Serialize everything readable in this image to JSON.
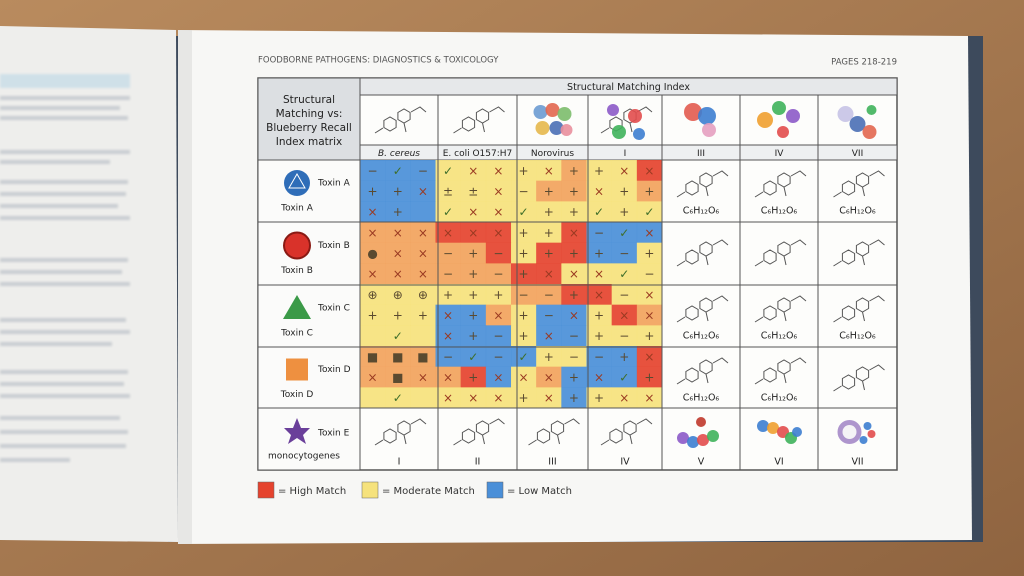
{
  "header": {
    "title": "FOODBORNE PATHOGENS: DIAGNOSTICS & TOXICOLOGY",
    "pages": "PAGES 218-219"
  },
  "table": {
    "corner": [
      "Structural",
      "Matching vs:",
      "Blueberry Recall",
      "Index matrix"
    ],
    "group_header": "Structural Matching Index",
    "columns": [
      "B. cereus",
      "E. coli O157:H7",
      "Norovirus",
      "I",
      "III",
      "IV",
      "VII"
    ],
    "rows": [
      {
        "icon_label": "Toxin A",
        "label": "Toxin A",
        "formulas": [
          "C₆H₁₂O₆",
          "C₆H₁₂O₆",
          "C₆H₁₂O₆"
        ]
      },
      {
        "icon_label": "Toxin B",
        "label": "Toxin B",
        "formulas": [
          null,
          null,
          null
        ]
      },
      {
        "icon_label": "Toxin C",
        "label": "Toxin C",
        "formulas": [
          "C₆H₁₂O₆",
          "C₆H₁₂O₆",
          "C₆H₁₂O₆"
        ]
      },
      {
        "icon_label": "Toxin D",
        "label": "Toxin D",
        "formulas": [
          "C₆H₁₂O₆",
          "C₆H₁₂O₆",
          null
        ]
      },
      {
        "icon_label": "Toxin E",
        "label": "monocytogenes",
        "formulas": [
          null,
          null,
          null
        ]
      }
    ],
    "footer": [
      "I",
      "II",
      "III",
      "IV",
      "V",
      "VI",
      "VII"
    ],
    "heatmap": {
      "palette": {
        "h": "#e5432e",
        "o": "#f2a35c",
        "m": "#f6e27c",
        "l": "#4a8fd8"
      },
      "colors": [
        "lll",
        "mmm",
        "mmo",
        "mmh",
        "lll",
        "mmm",
        "moo",
        "mmo",
        "lll",
        "mmm",
        "mmm",
        "mmm",
        "ooo",
        "hhh",
        "mmh",
        "lll",
        "ooo",
        "ooh",
        "mhh",
        "llm",
        "ooo",
        "ooo",
        "hhm",
        "mmm",
        "mmm",
        "mmm",
        "ooh",
        "hmm",
        "mmm",
        "llo",
        "mll",
        "mho",
        "mmm",
        "lll",
        "mll",
        "mmm",
        "ooo",
        "lll",
        "lmm",
        "llh",
        "ooo",
        "ohl",
        "mol",
        "llh",
        "mmm",
        "mmm",
        "mml",
        "mmm"
      ],
      "symbols": [
        [
          "−",
          "✓",
          "−",
          "✓",
          "×",
          "×",
          "+",
          "×",
          "+",
          "+",
          "×",
          "×"
        ],
        [
          "+",
          "+",
          "×",
          "±",
          "±",
          "×",
          "−",
          "+",
          "+",
          "×",
          "+",
          "+"
        ],
        [
          "×",
          "+",
          null,
          "✓",
          "×",
          "×",
          "✓",
          "+",
          "+",
          "✓",
          "+",
          "✓"
        ],
        [
          "×",
          "×",
          "×",
          "×",
          "×",
          "×",
          "+",
          "+",
          "×",
          "−",
          "✓",
          "×"
        ],
        [
          "●",
          "×",
          "×",
          "−",
          "+",
          "−",
          "+",
          "+",
          "+",
          "+",
          "−",
          "+"
        ],
        [
          "×",
          "×",
          "×",
          "−",
          "+",
          "−",
          "+",
          "×",
          "×",
          "×",
          "✓",
          "−"
        ],
        [
          "⊕",
          "⊕",
          "⊕",
          "+",
          "+",
          "+",
          "−",
          "−",
          "+",
          "×",
          "−",
          "×"
        ],
        [
          "+",
          "+",
          "+",
          "×",
          "+",
          "×",
          "+",
          "−",
          "×",
          "+",
          "×",
          "×"
        ],
        [
          null,
          "✓",
          null,
          "×",
          "+",
          "−",
          "+",
          "×",
          "−",
          "+",
          "−",
          "+"
        ],
        [
          "■",
          "■",
          "■",
          "−",
          "✓",
          "−",
          "✓",
          "+",
          "−",
          "−",
          "+",
          "×"
        ],
        [
          "×",
          "■",
          "×",
          "×",
          "+",
          "×",
          "×",
          "×",
          "+",
          "×",
          "✓",
          "+"
        ],
        [
          null,
          "✓",
          null,
          "×",
          "×",
          "×",
          "+",
          "×",
          "+",
          "+",
          "×",
          "×"
        ]
      ]
    }
  },
  "legend": [
    {
      "color": "#e5432e",
      "label": "= High Match"
    },
    {
      "color": "#f6e27c",
      "label": "= Moderate Match"
    },
    {
      "color": "#4a8fd8",
      "label": "= Low Match"
    }
  ]
}
